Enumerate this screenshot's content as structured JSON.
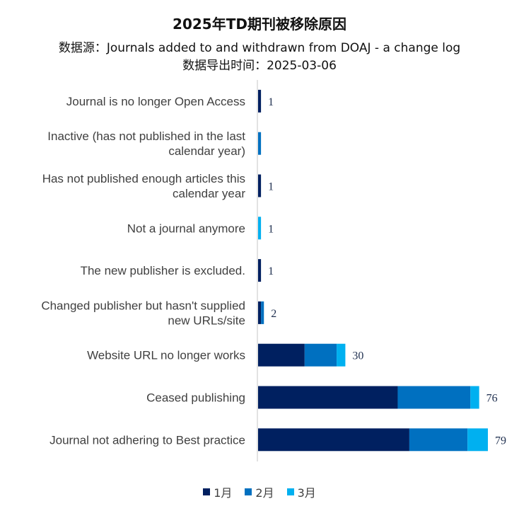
{
  "chart_data": {
    "type": "bar",
    "orientation": "horizontal",
    "stacked": true,
    "title": "2025年TD期刊被移除原因",
    "subtitle_lines": [
      "数据源：Journals added to and withdrawn from DOAJ - a change log",
      "数据导出时间：2025-03-06"
    ],
    "categories": [
      [
        "Journal is no longer Open Access"
      ],
      [
        "Inactive (has not published in the last",
        "calendar year)"
      ],
      [
        "Has not published enough articles this",
        "calendar year"
      ],
      [
        "Not a journal anymore"
      ],
      [
        "The new publisher is excluded."
      ],
      [
        "Changed publisher but hasn't supplied",
        "new URLs/site"
      ],
      [
        "Website URL no longer works"
      ],
      [
        "Ceased publishing"
      ],
      [
        "Journal not adhering to Best practice"
      ]
    ],
    "series": [
      {
        "name": "1月",
        "color": "#002060",
        "values": [
          1,
          0,
          1,
          0,
          1,
          1,
          16,
          48,
          52
        ]
      },
      {
        "name": "2月",
        "color": "#0070c0",
        "values": [
          0,
          1,
          0,
          0,
          0,
          1,
          11,
          25,
          20
        ]
      },
      {
        "name": "3月",
        "color": "#00b0f0",
        "values": [
          0,
          0,
          0,
          1,
          0,
          0,
          3,
          3,
          7
        ]
      }
    ],
    "totals": [
      "1",
      "",
      "1",
      "1",
      "1",
      "2",
      "30",
      "76",
      "79"
    ],
    "xlim": [
      0,
      90
    ],
    "grid": false,
    "legend_position": "bottom"
  }
}
